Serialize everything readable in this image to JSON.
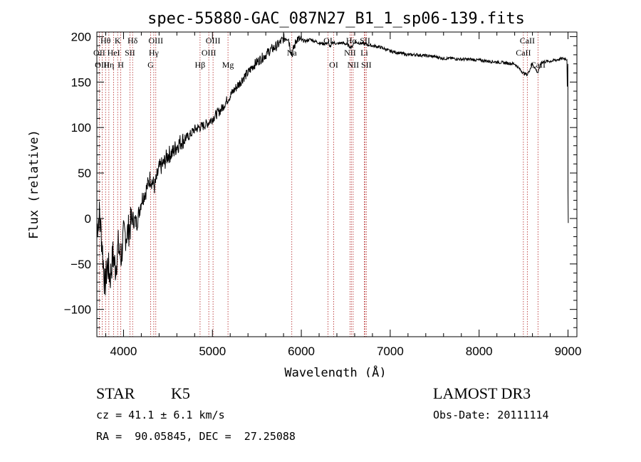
{
  "chart_data": {
    "type": "line",
    "title": "spec-55880-GAC_087N27_B1_1_sp06-139.fits",
    "xlabel": "Wavelength (Å)",
    "ylabel": "Flux (relative)",
    "xlim": [
      3700,
      9100
    ],
    "ylim": [
      -130,
      205
    ],
    "xticks": [
      4000,
      5000,
      6000,
      7000,
      8000,
      9000
    ],
    "yticks": [
      -100,
      -50,
      0,
      50,
      100,
      150,
      200
    ],
    "xtick_labels": [
      "4000",
      "5000",
      "6000",
      "7000",
      "8000",
      "9000"
    ],
    "ytick_labels": [
      "−100",
      "−50",
      "0",
      "50",
      "100",
      "150",
      "200"
    ],
    "series": [
      {
        "name": "flux",
        "points": [
          [
            3700,
            -10
          ],
          [
            3730,
            5
          ],
          [
            3760,
            -30
          ],
          [
            3790,
            -75
          ],
          [
            3820,
            -50
          ],
          [
            3850,
            -65
          ],
          [
            3880,
            -40
          ],
          [
            3910,
            -55
          ],
          [
            3940,
            -30
          ],
          [
            3970,
            -45
          ],
          [
            4000,
            -20
          ],
          [
            4050,
            -15
          ],
          [
            4100,
            0
          ],
          [
            4150,
            -5
          ],
          [
            4200,
            20
          ],
          [
            4250,
            30
          ],
          [
            4300,
            45
          ],
          [
            4350,
            35
          ],
          [
            4400,
            55
          ],
          [
            4450,
            60
          ],
          [
            4500,
            70
          ],
          [
            4550,
            72
          ],
          [
            4600,
            80
          ],
          [
            4650,
            85
          ],
          [
            4700,
            88
          ],
          [
            4750,
            92
          ],
          [
            4800,
            98
          ],
          [
            4850,
            100
          ],
          [
            4900,
            102
          ],
          [
            4950,
            105
          ],
          [
            5000,
            110
          ],
          [
            5050,
            115
          ],
          [
            5100,
            120
          ],
          [
            5150,
            128
          ],
          [
            5200,
            135
          ],
          [
            5250,
            142
          ],
          [
            5300,
            148
          ],
          [
            5350,
            155
          ],
          [
            5400,
            160
          ],
          [
            5450,
            167
          ],
          [
            5500,
            172
          ],
          [
            5550,
            176
          ],
          [
            5600,
            180
          ],
          [
            5650,
            185
          ],
          [
            5700,
            188
          ],
          [
            5750,
            192
          ],
          [
            5800,
            198
          ],
          [
            5850,
            200
          ],
          [
            5893,
            180
          ],
          [
            5950,
            198
          ],
          [
            6000,
            196
          ],
          [
            6050,
            195
          ],
          [
            6100,
            197
          ],
          [
            6150,
            195
          ],
          [
            6200,
            193
          ],
          [
            6250,
            192
          ],
          [
            6300,
            193
          ],
          [
            6330,
            188
          ],
          [
            6350,
            194
          ],
          [
            6400,
            192
          ],
          [
            6450,
            193
          ],
          [
            6500,
            192
          ],
          [
            6563,
            188
          ],
          [
            6600,
            194
          ],
          [
            6650,
            193
          ],
          [
            6700,
            192
          ],
          [
            6800,
            190
          ],
          [
            6900,
            188
          ],
          [
            7000,
            184
          ],
          [
            7100,
            182
          ],
          [
            7200,
            180
          ],
          [
            7300,
            180
          ],
          [
            7400,
            179
          ],
          [
            7500,
            178
          ],
          [
            7600,
            176
          ],
          [
            7700,
            176
          ],
          [
            7800,
            175
          ],
          [
            7900,
            175
          ],
          [
            8000,
            174
          ],
          [
            8100,
            173
          ],
          [
            8200,
            172
          ],
          [
            8300,
            171
          ],
          [
            8400,
            170
          ],
          [
            8498,
            160
          ],
          [
            8542,
            158
          ],
          [
            8600,
            170
          ],
          [
            8662,
            160
          ],
          [
            8700,
            172
          ],
          [
            8800,
            173
          ],
          [
            8900,
            175
          ],
          [
            8950,
            176
          ],
          [
            8990,
            175
          ],
          [
            9000,
            30
          ],
          [
            9005,
            -5
          ]
        ]
      }
    ],
    "spectral_lines": [
      {
        "name": "Hθ",
        "wavelength": 3798,
        "row": 0
      },
      {
        "name": "OII",
        "wavelength": 3727,
        "row": 1
      },
      {
        "name": "OIII",
        "wavelength": 3760,
        "row": 2
      },
      {
        "name": "K",
        "wavelength": 3934,
        "row": 0
      },
      {
        "name": "HeI",
        "wavelength": 3889,
        "row": 1
      },
      {
        "name": "Hη",
        "wavelength": 3835,
        "row": 2
      },
      {
        "name": "Hδ",
        "wavelength": 4102,
        "row": 0
      },
      {
        "name": "SII",
        "wavelength": 4072,
        "row": 1
      },
      {
        "name": "H",
        "wavelength": 3969,
        "row": 2
      },
      {
        "name": "OIII",
        "wavelength": 4363,
        "row": 0
      },
      {
        "name": "Hγ",
        "wavelength": 4340,
        "row": 1
      },
      {
        "name": "G",
        "wavelength": 4305,
        "row": 2
      },
      {
        "name": "OIII",
        "wavelength": 5007,
        "row": 0
      },
      {
        "name": "OIII",
        "wavelength": 4959,
        "row": 1
      },
      {
        "name": "Hβ",
        "wavelength": 4861,
        "row": 2
      },
      {
        "name": "Mg",
        "wavelength": 5175,
        "row": 2
      },
      {
        "name": "Na",
        "wavelength": 5893,
        "row": 1
      },
      {
        "name": "OI",
        "wavelength": 6300,
        "row": 0
      },
      {
        "name": "OI",
        "wavelength": 6364,
        "row": 2
      },
      {
        "name": "Hα",
        "wavelength": 6563,
        "row": 0
      },
      {
        "name": "NII",
        "wavelength": 6548,
        "row": 1
      },
      {
        "name": "NII",
        "wavelength": 6583,
        "row": 2
      },
      {
        "name": "SII",
        "wavelength": 6717,
        "row": 0
      },
      {
        "name": "Li",
        "wavelength": 6708,
        "row": 1
      },
      {
        "name": "SII",
        "wavelength": 6731,
        "row": 2
      },
      {
        "name": "CaII",
        "wavelength": 8542,
        "row": 0
      },
      {
        "name": "CaII",
        "wavelength": 8498,
        "row": 1
      },
      {
        "name": "CaII",
        "wavelength": 8662,
        "row": 2
      }
    ]
  },
  "info": {
    "class": "STAR",
    "subclass": "K5",
    "survey": "LAMOST DR3",
    "redshift": "cz = 41.1 ± 6.1 km/s",
    "obs_date": "Obs-Date: 20111114",
    "coords": "RA =  90.05845, DEC =  27.25088"
  },
  "colors": {
    "line_marker": "#b22222",
    "spectrum": "#000000"
  }
}
